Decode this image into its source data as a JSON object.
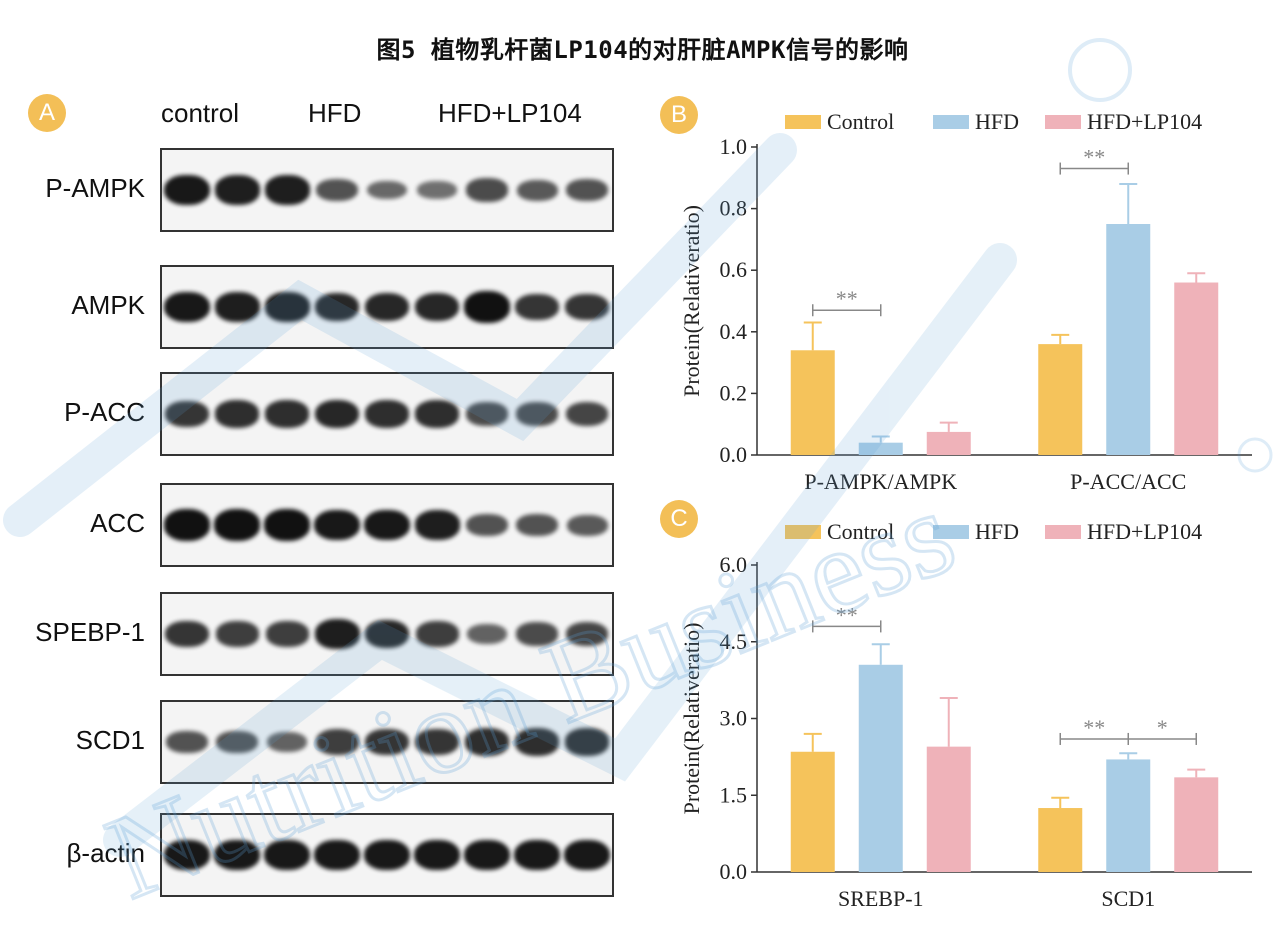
{
  "title": "图5 植物乳杆菌LP104的对肝脏AMPK信号的影响",
  "panels": {
    "a": "A",
    "b": "B",
    "c": "C"
  },
  "blot": {
    "groups": [
      "control",
      "HFD",
      "HFD+LP104"
    ],
    "rows": [
      {
        "label": "P-AMPK",
        "lanes": [
          0.95,
          0.9,
          0.9,
          0.55,
          0.4,
          0.35,
          0.6,
          0.5,
          0.55
        ]
      },
      {
        "label": "AMPK",
        "lanes": [
          0.95,
          0.9,
          0.9,
          0.85,
          0.85,
          0.85,
          1.0,
          0.75,
          0.75
        ]
      },
      {
        "label": "P-ACC",
        "lanes": [
          0.75,
          0.8,
          0.8,
          0.85,
          0.8,
          0.8,
          0.6,
          0.6,
          0.65
        ]
      },
      {
        "label": "ACC",
        "lanes": [
          1.0,
          1.0,
          1.0,
          0.95,
          0.95,
          0.9,
          0.55,
          0.55,
          0.5
        ]
      },
      {
        "label": "SPEBP-1",
        "lanes": [
          0.75,
          0.7,
          0.7,
          0.9,
          0.85,
          0.7,
          0.45,
          0.6,
          0.65
        ]
      },
      {
        "label": "SCD1",
        "lanes": [
          0.55,
          0.55,
          0.45,
          0.7,
          0.75,
          0.75,
          0.8,
          0.8,
          0.8
        ]
      },
      {
        "label": "β-actin",
        "lanes": [
          0.95,
          0.95,
          0.95,
          0.95,
          0.95,
          0.95,
          0.95,
          0.95,
          0.95
        ]
      }
    ]
  },
  "colors": {
    "control": "#f5c35b",
    "hfd": "#a9cde6",
    "lp104": "#efb2b9",
    "accent": "#f3bf57",
    "watermark": "#5b9fd6"
  },
  "watermark_text": "Nutrition Business",
  "chart_data": [
    {
      "type": "bar",
      "categories": [
        "P-AMPK/AMPK",
        "P-ACC/ACC"
      ],
      "series": [
        {
          "name": "Control",
          "values": [
            0.34,
            0.36
          ],
          "errors": [
            0.09,
            0.03
          ]
        },
        {
          "name": "HFD",
          "values": [
            0.04,
            0.75
          ],
          "errors": [
            0.02,
            0.13
          ]
        },
        {
          "name": "HFD+LP104",
          "values": [
            0.075,
            0.56
          ],
          "errors": [
            0.03,
            0.03
          ]
        }
      ],
      "ylabel": "Protein(Relativeratio)",
      "ylim": [
        0.0,
        1.0
      ],
      "yticks": [
        "0.0",
        "0.2",
        "0.4",
        "0.6",
        "0.8",
        "1.0"
      ],
      "legend": "top",
      "annotations": [
        {
          "category": "P-AMPK/AMPK",
          "between": [
            "Control",
            "HFD"
          ],
          "text": "**",
          "y": 0.47
        },
        {
          "category": "P-ACC/ACC",
          "between": [
            "Control",
            "HFD"
          ],
          "text": "**",
          "y": 0.93
        }
      ]
    },
    {
      "type": "bar",
      "categories": [
        "SREBP-1",
        "SCD1"
      ],
      "series": [
        {
          "name": "Control",
          "values": [
            2.35,
            1.25
          ],
          "errors": [
            0.35,
            0.2
          ]
        },
        {
          "name": "HFD",
          "values": [
            4.05,
            2.2
          ],
          "errors": [
            0.4,
            0.12
          ]
        },
        {
          "name": "HFD+LP104",
          "values": [
            2.45,
            1.85
          ],
          "errors": [
            0.95,
            0.15
          ]
        }
      ],
      "ylabel": "Protein(Relativeratio)",
      "ylim": [
        0.0,
        6.0
      ],
      "yticks": [
        "0.0",
        "1.5",
        "3.0",
        "4.5",
        "6.0"
      ],
      "legend": "top",
      "annotations": [
        {
          "category": "SREBP-1",
          "between": [
            "Control",
            "HFD"
          ],
          "text": "**",
          "y": 4.8
        },
        {
          "category": "SCD1",
          "between": [
            "Control",
            "HFD"
          ],
          "text": "**",
          "y": 2.6
        },
        {
          "category": "SCD1",
          "between": [
            "HFD",
            "HFD+LP104"
          ],
          "text": "*",
          "y": 2.6
        }
      ]
    }
  ]
}
